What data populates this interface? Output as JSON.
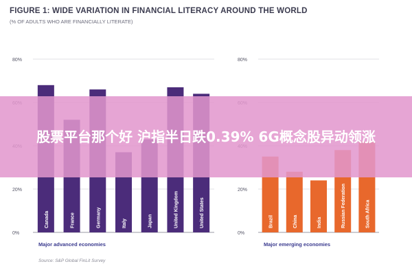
{
  "header": {
    "title": "FIGURE 1: WIDE VARIATION IN FINANCIAL LITERACY AROUND THE WORLD",
    "subtitle": "(% OF ADULTS WHO ARE FINANCIALLY LITERATE)"
  },
  "overlay": {
    "text": "股票平台那个好 沪指半日跌0.39% 6G概念股异动领涨"
  },
  "footer": {
    "source": "Source: S&P Global FinLit Survey"
  },
  "chart_data": [
    {
      "type": "bar",
      "xlabel": "Major advanced economies",
      "ylim": [
        0,
        80
      ],
      "yticks": [
        "0%",
        "20%",
        "40%",
        "60%",
        "80%"
      ],
      "categories": [
        "Canada",
        "France",
        "Germany",
        "Italy",
        "Japan",
        "United Kingdom",
        "United States"
      ],
      "values": [
        68,
        52,
        66,
        37,
        43,
        67,
        64
      ],
      "color": "#4b2c7a",
      "grid": true
    },
    {
      "type": "bar",
      "xlabel": "Major emerging economies",
      "ylim": [
        0,
        80
      ],
      "yticks": [
        "0%",
        "20%",
        "40%",
        "60%",
        "80%"
      ],
      "categories": [
        "Brazil",
        "China",
        "India",
        "Russian Federation",
        "South Africa"
      ],
      "values": [
        35,
        28,
        24,
        38,
        42
      ],
      "color": "#e8682c",
      "grid": true
    }
  ]
}
